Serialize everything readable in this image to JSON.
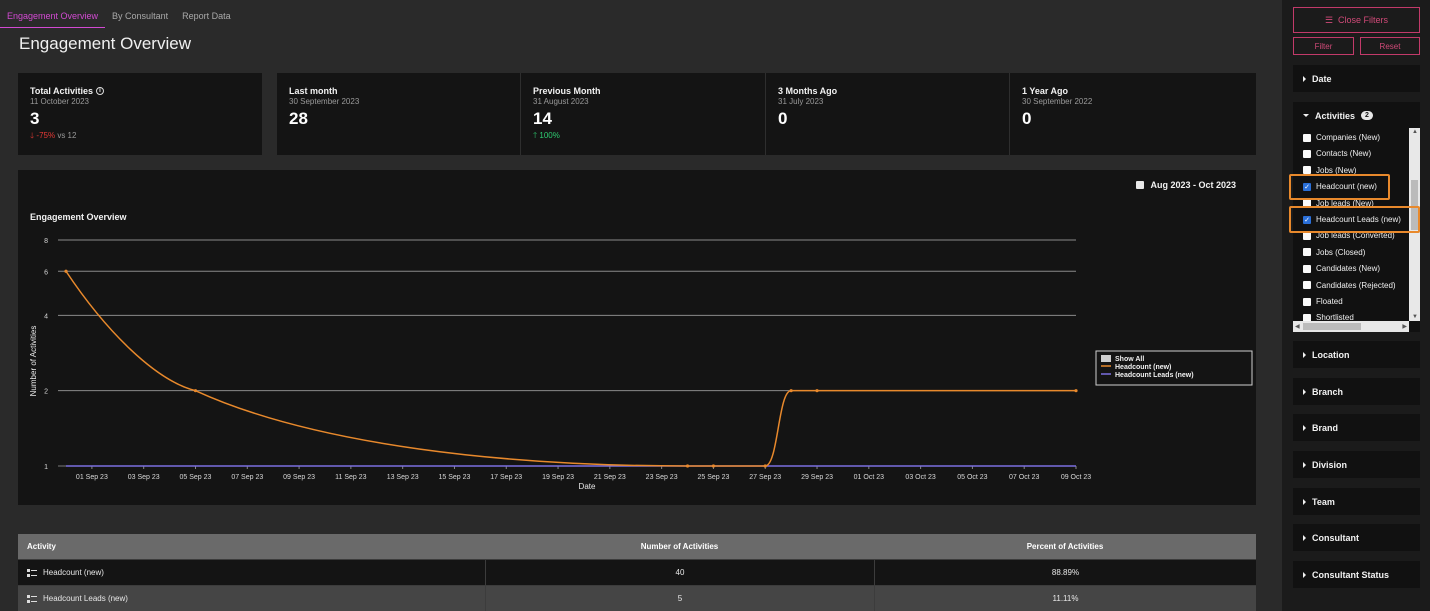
{
  "tabs": [
    {
      "label": "Engagement Overview",
      "active": true
    },
    {
      "label": "By Consultant",
      "active": false
    },
    {
      "label": "Report Data",
      "active": false
    }
  ],
  "page_title": "Engagement Overview",
  "kpis": [
    {
      "label": "Total Activities",
      "date": "11 October 2023",
      "value": "3",
      "change_pct": "-75%",
      "change_suffix": "vs 12",
      "direction": "down"
    },
    {
      "label": "Last month",
      "date": "30 September 2023",
      "value": "28"
    },
    {
      "label": "Previous Month",
      "date": "31 August 2023",
      "value": "14",
      "change_pct": "100%",
      "direction": "up"
    },
    {
      "label": "3 Months Ago",
      "date": "31 July 2023",
      "value": "0"
    },
    {
      "label": "1 Year Ago",
      "date": "30 September 2022",
      "value": "0"
    }
  ],
  "chart": {
    "date_range": "Aug 2023 - Oct 2023",
    "title": "Engagement Overview",
    "legend_show_all": "Show All"
  },
  "chart_data": {
    "type": "line",
    "title": "Engagement Overview",
    "xlabel": "Date",
    "ylabel": "Number of Activities",
    "y_scale": "log",
    "yticks": [
      1,
      2,
      4,
      6,
      8
    ],
    "xticks": [
      "01 Sep 23",
      "03 Sep 23",
      "05 Sep 23",
      "07 Sep 23",
      "09 Sep 23",
      "11 Sep 23",
      "13 Sep 23",
      "15 Sep 23",
      "17 Sep 23",
      "19 Sep 23",
      "21 Sep 23",
      "23 Sep 23",
      "25 Sep 23",
      "27 Sep 23",
      "29 Sep 23",
      "01 Oct 23",
      "03 Oct 23",
      "05 Oct 23",
      "07 Oct 23",
      "09 Oct 23"
    ],
    "legend_position": "right",
    "grid": true,
    "series": [
      {
        "name": "Headcount (new)",
        "color": "#e8892c",
        "x": [
          "2023-08-31",
          "2023-09-05",
          "2023-09-24",
          "2023-09-25",
          "2023-09-27",
          "2023-09-28",
          "2023-09-29",
          "2023-10-09"
        ],
        "y": [
          6,
          2,
          1,
          1,
          1,
          2,
          2,
          2
        ]
      },
      {
        "name": "Headcount Leads (new)",
        "color": "#7b6fe0",
        "x": [
          "2023-08-31",
          "2023-10-09"
        ],
        "y": [
          1,
          1
        ]
      }
    ]
  },
  "table": {
    "headers": [
      "Activity",
      "Number of Activities",
      "Percent of Activities"
    ],
    "rows": [
      {
        "activity": "Headcount (new)",
        "count": "40",
        "percent": "88.89%"
      },
      {
        "activity": "Headcount Leads (new)",
        "count": "5",
        "percent": "11.11%"
      }
    ]
  },
  "sidebar": {
    "close_filters": "Close Filters",
    "filter": "Filter",
    "reset": "Reset",
    "date": "Date",
    "activities": "Activities",
    "activities_count": "2",
    "activity_options": [
      {
        "label": "Companies (New)",
        "checked": false
      },
      {
        "label": "Contacts (New)",
        "checked": false
      },
      {
        "label": "Jobs (New)",
        "checked": false
      },
      {
        "label": "Headcount (new)",
        "checked": true
      },
      {
        "label": "Job leads (New)",
        "checked": false
      },
      {
        "label": "Headcount Leads (new)",
        "checked": true
      },
      {
        "label": "Job leads (Converted)",
        "checked": false
      },
      {
        "label": "Jobs (Closed)",
        "checked": false
      },
      {
        "label": "Candidates (New)",
        "checked": false
      },
      {
        "label": "Candidates (Rejected)",
        "checked": false
      },
      {
        "label": "Floated",
        "checked": false
      },
      {
        "label": "Shortlisted",
        "checked": false
      }
    ],
    "sections": [
      "Location",
      "Branch",
      "Brand",
      "Division",
      "Team",
      "Consultant",
      "Consultant Status"
    ]
  }
}
